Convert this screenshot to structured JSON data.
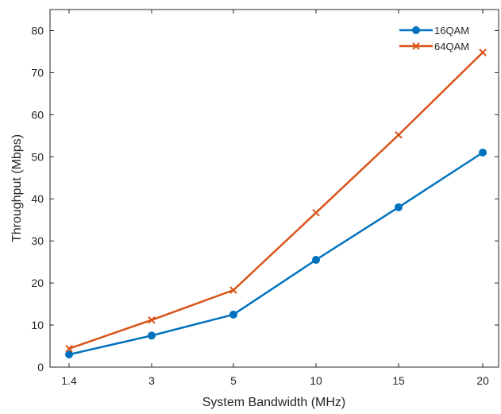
{
  "chart_data": {
    "type": "line",
    "title": "",
    "xlabel": "System Bandwidth (MHz)",
    "ylabel": "Throughput (Mbps)",
    "categories": [
      "1.4",
      "3",
      "5",
      "10",
      "15",
      "20"
    ],
    "ylim": [
      0,
      85
    ],
    "yticks": [
      0,
      10,
      20,
      30,
      40,
      50,
      60,
      70,
      80
    ],
    "grid": false,
    "legend_position": "top-right",
    "series": [
      {
        "name": "16QAM",
        "values": [
          3.0,
          7.5,
          12.5,
          25.5,
          38.0,
          51.0
        ],
        "color": "#0072BD",
        "marker": "circle"
      },
      {
        "name": "64QAM",
        "values": [
          4.4,
          11.2,
          18.3,
          36.7,
          55.2,
          74.8
        ],
        "color": "#D95319",
        "marker": "x"
      }
    ]
  }
}
